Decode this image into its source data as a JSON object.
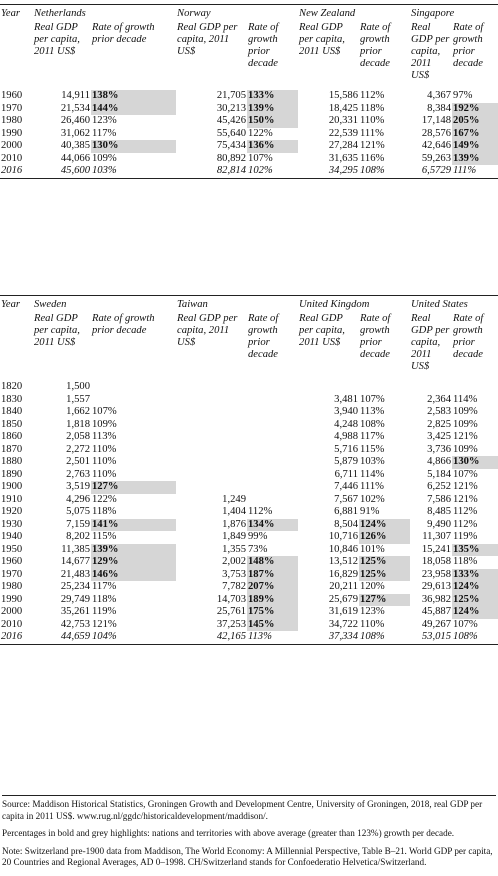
{
  "table1": {
    "year_label": "Year",
    "countries": [
      "Netherlands",
      "Norway",
      "New Zealand",
      "Singapore"
    ],
    "sub_headers": [
      [
        "Real GDP per capita, 2011 US$",
        "Rate of growth prior decade"
      ],
      [
        "Real GDP per capita, 2011 US$",
        "Rate of growth prior decade"
      ],
      [
        "Real GDP per capita, 2011 US$",
        "Rate of growth prior decade"
      ],
      [
        "Real GDP per capita, 2011 US$",
        "Rate of growth prior decade"
      ]
    ],
    "rows": [
      [
        "1960",
        "14,911",
        "138%",
        "21,705",
        "133%",
        "15,586",
        "112%",
        "4,367",
        "97%"
      ],
      [
        "1970",
        "21,534",
        "144%",
        "30,213",
        "139%",
        "18,425",
        "118%",
        "8,384",
        "192%"
      ],
      [
        "1980",
        "26,460",
        "123%",
        "45,426",
        "150%",
        "20,331",
        "110%",
        "17,148",
        "205%"
      ],
      [
        "1990",
        "31,062",
        "117%",
        "55,640",
        "122%",
        "22,539",
        "111%",
        "28,576",
        "167%"
      ],
      [
        "2000",
        "40,385",
        "130%",
        "75,434",
        "136%",
        "27,284",
        "121%",
        "42,646",
        "149%"
      ],
      [
        "2010",
        "44,066",
        "109%",
        "80,892",
        "107%",
        "31,635",
        "116%",
        "59,263",
        "139%"
      ],
      [
        "2016",
        "45,600",
        "103%",
        "82,814",
        "102%",
        "34,295",
        "108%",
        "6,5729",
        "111%"
      ]
    ]
  },
  "table2": {
    "year_label": "Year",
    "countries": [
      "Sweden",
      "Taiwan",
      "United Kingdom",
      "United States"
    ],
    "sub_headers": [
      [
        "Real GDP per capita, 2011 US$",
        "Rate of growth prior decade"
      ],
      [
        "Real GDP per capita, 2011 US$",
        "Rate of growth prior decade"
      ],
      [
        "Real GDP per capita, 2011 US$",
        "Rate of growth prior decade"
      ],
      [
        "Real GDP per capita, 2011 US$",
        "Rate of growth prior decade"
      ]
    ],
    "rows": [
      [
        "1820",
        "1,500",
        "",
        "",
        "",
        "",
        "",
        "",
        ""
      ],
      [
        "1830",
        "1,557",
        "",
        "",
        "",
        "3,481",
        "107%",
        "2,364",
        "114%"
      ],
      [
        "1840",
        "1,662",
        "107%",
        "",
        "",
        "3,940",
        "113%",
        "2,583",
        "109%"
      ],
      [
        "1850",
        "1,818",
        "109%",
        "",
        "",
        "4,248",
        "108%",
        "2,825",
        "109%"
      ],
      [
        "1860",
        "2,058",
        "113%",
        "",
        "",
        "4,988",
        "117%",
        "3,425",
        "121%"
      ],
      [
        "1870",
        "2,272",
        "110%",
        "",
        "",
        "5,716",
        "115%",
        "3,736",
        "109%"
      ],
      [
        "1880",
        "2,501",
        "110%",
        "",
        "",
        "5,879",
        "103%",
        "4,866",
        "130%"
      ],
      [
        "1890",
        "2,763",
        "110%",
        "",
        "",
        "6,711",
        "114%",
        "5,184",
        "107%"
      ],
      [
        "1900",
        "3,519",
        "127%",
        "",
        "",
        "7,446",
        "111%",
        "6,252",
        "121%"
      ],
      [
        "1910",
        "4,296",
        "122%",
        "1,249",
        "",
        "7,567",
        "102%",
        "7,586",
        "121%"
      ],
      [
        "1920",
        "5,075",
        "118%",
        "1,404",
        "112%",
        "6,881",
        "91%",
        "8,485",
        "112%"
      ],
      [
        "1930",
        "7,159",
        "141%",
        "1,876",
        "134%",
        "8,504",
        "124%",
        "9,490",
        "112%"
      ],
      [
        "1940",
        "8,202",
        "115%",
        "1,849",
        "99%",
        "10,716",
        "126%",
        "11,307",
        "119%"
      ],
      [
        "1950",
        "11,385",
        "139%",
        "1,355",
        "73%",
        "10,846",
        "101%",
        "15,241",
        "135%"
      ],
      [
        "1960",
        "14,677",
        "129%",
        "2,002",
        "148%",
        "13,512",
        "125%",
        "18,058",
        "118%"
      ],
      [
        "1970",
        "21,483",
        "146%",
        "3,753",
        "187%",
        "16,829",
        "125%",
        "23,958",
        "133%"
      ],
      [
        "1980",
        "25,234",
        "117%",
        "7,782",
        "207%",
        "20,211",
        "120%",
        "29,613",
        "124%"
      ],
      [
        "1990",
        "29,749",
        "118%",
        "14,703",
        "189%",
        "25,679",
        "127%",
        "36,982",
        "125%"
      ],
      [
        "2000",
        "35,261",
        "119%",
        "25,761",
        "175%",
        "31,619",
        "123%",
        "45,887",
        "124%"
      ],
      [
        "2010",
        "42,753",
        "121%",
        "37,253",
        "145%",
        "34,722",
        "110%",
        "49,267",
        "107%"
      ],
      [
        "2016",
        "44,659",
        "104%",
        "42,165",
        "113%",
        "37,334",
        "108%",
        "53,015",
        "108%"
      ]
    ]
  },
  "notes": {
    "source": "Source: Maddison Historical Statistics, Groningen Growth and Development Centre, University of Groningen, 2018, real GDP per capita in 2011 US$. www.rug.nl/ggdc/historicaldevelopment/maddison/.",
    "percentages": "Percentages in bold and grey highlights: nations and territories with above average (greater than 123%) growth per decade.",
    "note": "Note: Switzerland pre-1900 data from Maddison, The World Economy: A Millennial Perspective, Table B–21. World GDP per capita, 20 Countries and Regional Averages, AD 0–1998. CH/Switzerland stands for Confoederatio Helvetica/Switzerland."
  }
}
